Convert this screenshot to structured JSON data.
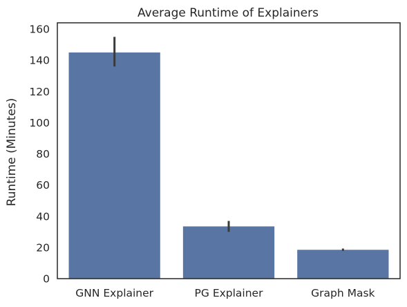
{
  "chart_data": {
    "type": "bar",
    "title": "Average Runtime of Explainers",
    "xlabel": "",
    "ylabel": "Runtime (Minutes)",
    "categories": [
      "GNN Explainer",
      "PG Explainer",
      "Graph Mask"
    ],
    "values": [
      145,
      33.5,
      18.5
    ],
    "error_low": [
      136,
      30,
      17.8
    ],
    "error_high": [
      155,
      37,
      19.3
    ],
    "ylim": [
      0,
      164
    ],
    "yticks": [
      0,
      20,
      40,
      60,
      80,
      100,
      120,
      140,
      160
    ],
    "grid": false,
    "legend": "none",
    "colors": {
      "bar": "#5875a4",
      "error": "#3a3a3a",
      "frame": "#262626"
    }
  }
}
